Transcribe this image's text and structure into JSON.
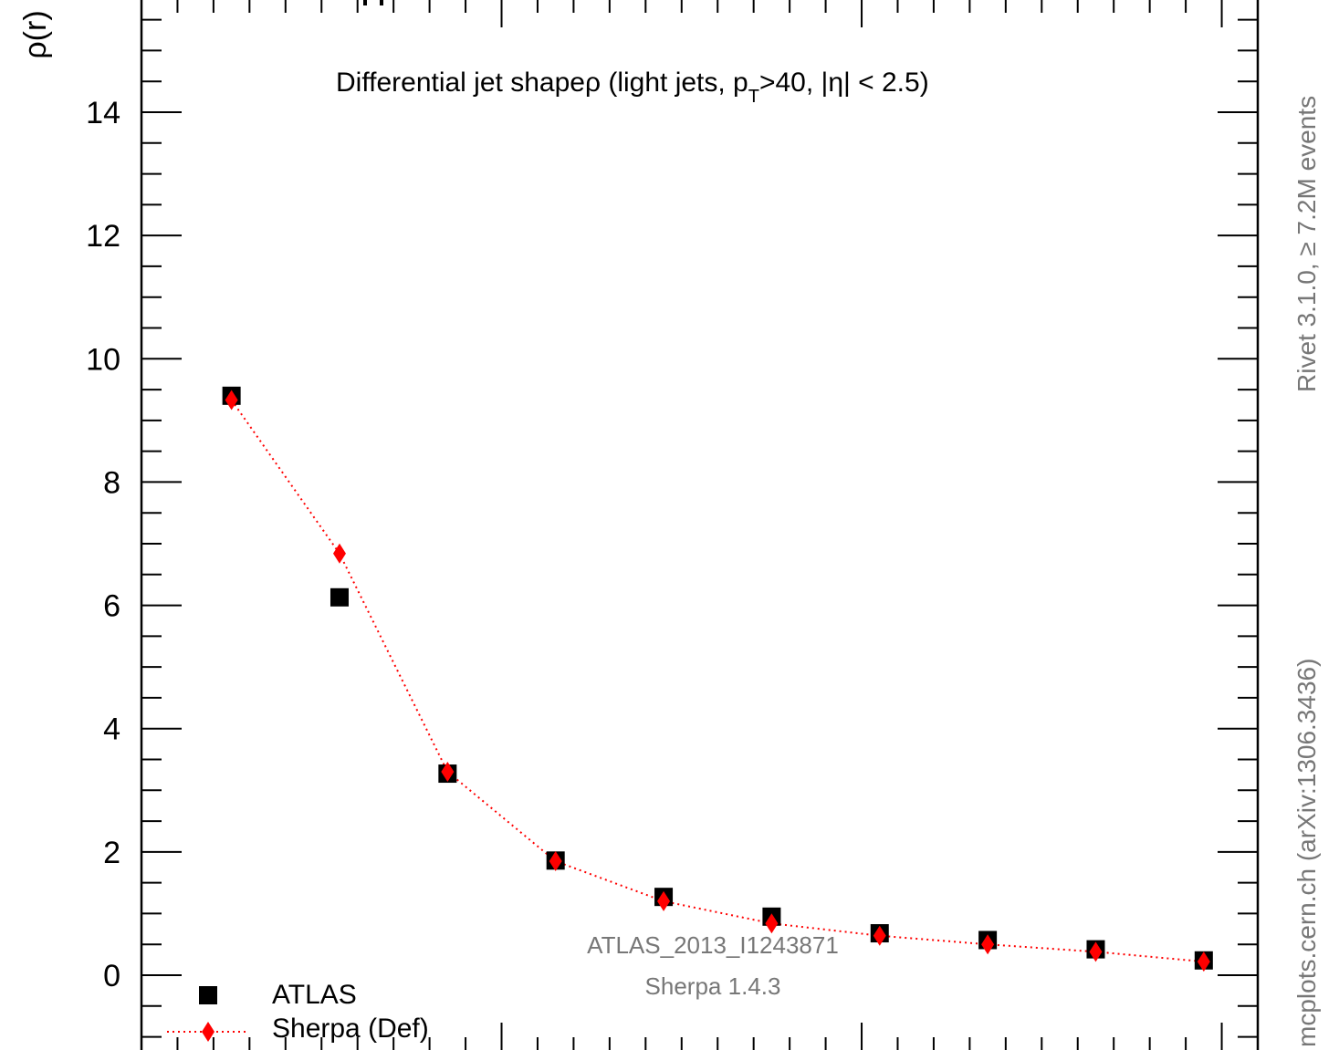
{
  "chart_data": {
    "type": "scatter",
    "title": "Differential jet shapeρ (light jets, p",
    "title_sub": "T",
    "title_tail": ">40, |η| < 2.5)",
    "ylabel": "ρ(r)",
    "ylim": [
      -1.1,
      15.5
    ],
    "xlim": [
      0.0,
      0.31
    ],
    "y_ticks": [
      0,
      2,
      4,
      6,
      8,
      10,
      12,
      14
    ],
    "y_tick_labels": [
      "0",
      "2",
      "4",
      "6",
      "8",
      "10",
      "12",
      "14"
    ],
    "x_tick_labels_visible": false,
    "grid": false,
    "legend_position": "bottom-left",
    "series": [
      {
        "name": "ATLAS",
        "marker": "square",
        "color": "#000000",
        "x": [
          0.025,
          0.055,
          0.085,
          0.115,
          0.145,
          0.175,
          0.205,
          0.235,
          0.265,
          0.295
        ],
        "y": [
          9.4,
          6.13,
          3.27,
          1.86,
          1.27,
          0.95,
          0.68,
          0.57,
          0.42,
          0.24
        ]
      },
      {
        "name": "Sherpa (Def)",
        "marker": "diamond",
        "line": "dotted",
        "color": "#ff0000",
        "x": [
          0.025,
          0.055,
          0.085,
          0.115,
          0.145,
          0.175,
          0.205,
          0.235,
          0.265,
          0.295
        ],
        "y": [
          9.33,
          6.84,
          3.3,
          1.85,
          1.2,
          0.84,
          0.64,
          0.5,
          0.38,
          0.22
        ]
      }
    ],
    "annotations": {
      "analysis": "ATLAS_2013_I1243871",
      "generator": "Sherpa 1.4.3",
      "rivet": "Rivet 3.1.0, ≥ 7.2M events",
      "source": "mcplots.cern.ch (arXiv:1306.3436)"
    },
    "colors": {
      "data": "#000000",
      "mc": "#ff0000",
      "annotation": "#777777"
    }
  }
}
